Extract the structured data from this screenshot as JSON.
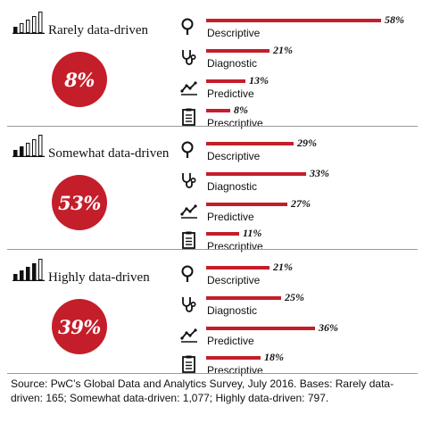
{
  "chart_data": {
    "type": "bar",
    "groups": [
      {
        "level": "Rarely data-driven",
        "share": "8%",
        "share_value": 8,
        "icon_bars_filled": 1
      },
      {
        "level": "Somewhat data-driven",
        "share": "53%",
        "share_value": 53,
        "icon_bars_filled": 2
      },
      {
        "level": "Highly data-driven",
        "share": "39%",
        "share_value": 39,
        "icon_bars_filled": 4
      }
    ],
    "categories": [
      "Descriptive",
      "Diagnostic",
      "Predictive",
      "Prescriptive"
    ],
    "category_icons": [
      "magnifier-icon",
      "stethoscope-icon",
      "trend-line-icon",
      "clipboard-icon"
    ],
    "series": [
      {
        "values": [
          58,
          21,
          13,
          8
        ],
        "labels": [
          "58%",
          "21%",
          "13%",
          "8%"
        ]
      },
      {
        "values": [
          29,
          33,
          27,
          11
        ],
        "labels": [
          "29%",
          "33%",
          "27%",
          "11%"
        ]
      },
      {
        "values": [
          21,
          25,
          36,
          18
        ],
        "labels": [
          "21%",
          "25%",
          "36%",
          "18%"
        ]
      }
    ],
    "xlim": [
      0,
      58
    ],
    "grid": false,
    "bar_color": "#c41e2a"
  },
  "source": "Source: PwC’s Global Data and Analytics Survey, July 2016. Bases: Rarely data-driven: 165; Somewhat data-driven: 1,077; Highly data-driven: 797."
}
